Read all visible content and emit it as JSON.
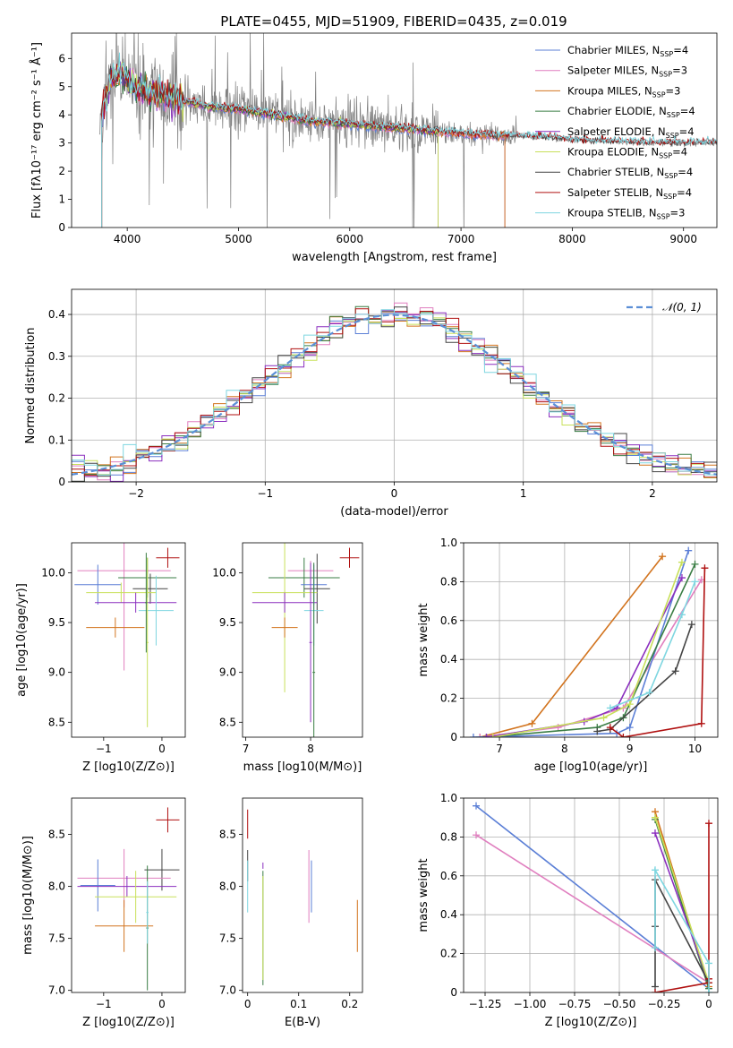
{
  "figure_title": "PLATE=0455, MJD=51909, FIBERID=0435, z=0.019",
  "colors": {
    "Chabrier MILES": "#5b7fd6",
    "Salpeter MILES": "#e07fbf",
    "Kroupa MILES": "#d2741f",
    "Chabrier ELODIE": "#3a7d44",
    "Salpeter ELODIE": "#8b2fbf",
    "Kroupa ELODIE": "#c8e05a",
    "Chabrier STELIB": "#444444",
    "Salpeter STELIB": "#b01010",
    "Kroupa STELIB": "#7ed6e0",
    "data": "#808080",
    "normal": "#5b8fd6"
  },
  "chart_data": [
    {
      "id": "spectrum",
      "type": "line",
      "title": "PLATE=0455, MJD=51909, FIBERID=0435, z=0.019",
      "xlabel": "wavelength [Angstrom, rest frame]",
      "ylabel": "Flux [fλ10⁻¹⁷ erg cm⁻² s⁻¹ Å⁻¹]",
      "xlim": [
        3500,
        9300
      ],
      "ylim": [
        0,
        6.9
      ],
      "xticks": [
        4000,
        5000,
        6000,
        7000,
        8000,
        9000
      ],
      "yticks": [
        0,
        1,
        2,
        3,
        4,
        5,
        6
      ],
      "legend_position": "top-right",
      "legend": [
        "Chabrier MILES, N_SSP=4",
        "Salpeter MILES, N_SSP=3",
        "Kroupa MILES, N_SSP=3",
        "Chabrier ELODIE, N_SSP=4",
        "Salpeter ELODIE, N_SSP=4",
        "Kroupa ELODIE, N_SSP=4",
        "Chabrier STELIB, N_SSP=4",
        "Salpeter STELIB, N_SSP=4",
        "Kroupa STELIB, N_SSP=3"
      ],
      "continuum": {
        "wavelength": [
          3750,
          3850,
          3950,
          4100,
          4300,
          4500,
          4700,
          5000,
          5300,
          5600,
          5900,
          6200,
          6500,
          6800,
          7100,
          7400,
          7700,
          8000,
          8300,
          8600,
          9000,
          9300
        ],
        "flux": [
          3.6,
          5.2,
          5.5,
          4.9,
          4.7,
          4.5,
          4.3,
          4.2,
          4.0,
          3.8,
          3.7,
          3.6,
          3.5,
          3.4,
          3.3,
          3.25,
          3.2,
          3.1,
          3.05,
          3.0,
          3.0,
          3.0
        ]
      },
      "model_cutoffs": {
        "Kroupa MILES": 7400,
        "Salpeter MILES": 7400,
        "Chabrier MILES": 7400,
        "Kroupa ELODIE": 6800,
        "Chabrier ELODIE": 6800,
        "Salpeter ELODIE": 6800,
        "Kroupa STELIB": 9300,
        "Chabrier STELIB": 9300,
        "Salpeter STELIB": 9300
      }
    },
    {
      "id": "residuals",
      "type": "step",
      "xlabel": "(data-model)/error",
      "ylabel": "Normed distribution",
      "xlim": [
        -2.5,
        2.5
      ],
      "ylim": [
        0,
        0.46
      ],
      "xticks": [
        -2,
        -1,
        0,
        1,
        2
      ],
      "yticks": [
        0.0,
        0.1,
        0.2,
        0.3,
        0.4
      ],
      "grid": true,
      "legend": [
        "𝒩(0, 1)"
      ],
      "legend_position": "top-right",
      "bin_width": 0.1
    },
    {
      "id": "age_vs_Z",
      "type": "errorbar",
      "xlabel": "Z [log10(Z/Z⊙)]",
      "ylabel": "age [log10(age/yr)]",
      "xlim": [
        -1.55,
        0.4
      ],
      "ylim": [
        8.35,
        10.3
      ],
      "xticks": [
        -1,
        0
      ],
      "yticks": [
        8.5,
        9.0,
        9.5,
        10.0
      ],
      "points": [
        {
          "model": "Salpeter STELIB",
          "x": 0.1,
          "y": 10.15,
          "xerr": 0.2,
          "yerr": 0.1
        },
        {
          "model": "Salpeter MILES",
          "x": -0.65,
          "y": 10.02,
          "xerr": 0.8,
          "yerr": 1.0
        },
        {
          "model": "Chabrier ELODIE",
          "x": -0.25,
          "y": 9.95,
          "xerr": 0.5,
          "yerr": 0.2
        },
        {
          "model": "Chabrier MILES",
          "x": -1.1,
          "y": 9.88,
          "xerr": 0.4,
          "yerr": 0.2
        },
        {
          "model": "Chabrier STELIB",
          "x": -0.2,
          "y": 9.84,
          "xerr": 0.3,
          "yerr": 0.15
        },
        {
          "model": "Kroupa ELODIE",
          "x": -0.7,
          "y": 9.8,
          "xerr": 0.6,
          "yerr": 0.1
        },
        {
          "model": "Salpeter ELODIE",
          "x": -0.45,
          "y": 9.7,
          "xerr": 0.7,
          "yerr": 0.1
        },
        {
          "model": "Kroupa STELIB",
          "x": -0.1,
          "y": 9.62,
          "xerr": 0.3,
          "yerr": 0.35
        },
        {
          "model": "Kroupa MILES",
          "x": -0.8,
          "y": 9.45,
          "xerr": 0.5,
          "yerr": 0.1
        },
        {
          "model": "Kroupa ELODIE",
          "x": -0.25,
          "y": 9.3,
          "xerr": 0.02,
          "yerr": 0.85
        },
        {
          "model": "Chabrier ELODIE",
          "x": -0.27,
          "y": 9.7,
          "xerr": 0.02,
          "yerr": 0.5
        }
      ]
    },
    {
      "id": "age_vs_mass",
      "type": "errorbar",
      "xlabel": "mass [log10(M/M⊙)]",
      "ylabel": "",
      "xlim": [
        6.95,
        8.8
      ],
      "ylim": [
        8.35,
        10.3
      ],
      "xticks": [
        7,
        8
      ],
      "yticks": [
        8.5,
        9.0,
        9.5,
        10.0
      ],
      "points": [
        {
          "model": "Salpeter STELIB",
          "x": 8.6,
          "y": 10.15,
          "xerr": 0.15,
          "yerr": 0.1
        },
        {
          "model": "Salpeter MILES",
          "x": 8.0,
          "y": 10.02,
          "xerr": 0.35,
          "yerr": 0.1
        },
        {
          "model": "Chabrier ELODIE",
          "x": 7.9,
          "y": 9.95,
          "xerr": 0.55,
          "yerr": 0.2
        },
        {
          "model": "Chabrier MILES",
          "x": 8.05,
          "y": 9.88,
          "xerr": 0.2,
          "yerr": 0.2
        },
        {
          "model": "Chabrier STELIB",
          "x": 8.1,
          "y": 9.84,
          "xerr": 0.2,
          "yerr": 0.35
        },
        {
          "model": "Kroupa ELODIE",
          "x": 7.6,
          "y": 9.8,
          "xerr": 0.5,
          "yerr": 1.0
        },
        {
          "model": "Salpeter ELODIE",
          "x": 7.6,
          "y": 9.7,
          "xerr": 0.5,
          "yerr": 0.1
        },
        {
          "model": "Kroupa STELIB",
          "x": 8.05,
          "y": 9.62,
          "xerr": 0.15,
          "yerr": 0.35
        },
        {
          "model": "Kroupa MILES",
          "x": 7.6,
          "y": 9.45,
          "xerr": 0.2,
          "yerr": 0.1
        },
        {
          "model": "Chabrier ELODIE",
          "x": 8.05,
          "y": 9.0,
          "xerr": 0.02,
          "yerr": 1.1
        },
        {
          "model": "Salpeter ELODIE",
          "x": 8.0,
          "y": 9.3,
          "xerr": 0.02,
          "yerr": 0.8
        }
      ]
    },
    {
      "id": "massweight_vs_age",
      "type": "line",
      "xlabel": "age [log10(age/yr)]",
      "ylabel": "mass weight",
      "xlim": [
        6.45,
        10.35
      ],
      "ylim": [
        0,
        1.0
      ],
      "xticks": [
        7,
        8,
        9,
        10
      ],
      "yticks": [
        0.0,
        0.2,
        0.4,
        0.6,
        0.8,
        1.0
      ],
      "grid": true,
      "series": [
        {
          "model": "Kroupa MILES",
          "x": [
            6.7,
            7.5,
            9.5
          ],
          "y": [
            0.0,
            0.07,
            0.93
          ]
        },
        {
          "model": "Salpeter MILES",
          "x": [
            6.7,
            7.9,
            8.9,
            10.1
          ],
          "y": [
            0.0,
            0.05,
            0.15,
            0.81
          ]
        },
        {
          "model": "Chabrier MILES",
          "x": [
            6.6,
            8.8,
            9.0,
            9.9
          ],
          "y": [
            0.0,
            0.02,
            0.05,
            0.96
          ]
        },
        {
          "model": "Chabrier ELODIE",
          "x": [
            6.8,
            8.5,
            8.9,
            10.0
          ],
          "y": [
            0.0,
            0.05,
            0.1,
            0.89
          ]
        },
        {
          "model": "Salpeter ELODIE",
          "x": [
            6.8,
            8.3,
            8.8,
            9.8
          ],
          "y": [
            0.0,
            0.08,
            0.15,
            0.82
          ]
        },
        {
          "model": "Kroupa ELODIE",
          "x": [
            6.9,
            8.6,
            9.0,
            9.8
          ],
          "y": [
            0.0,
            0.1,
            0.17,
            0.9
          ]
        },
        {
          "model": "Chabrier STELIB",
          "x": [
            8.5,
            8.7,
            9.7,
            9.95
          ],
          "y": [
            0.03,
            0.04,
            0.34,
            0.58
          ]
        },
        {
          "model": "Salpeter STELIB",
          "x": [
            8.7,
            8.9,
            10.1,
            10.15
          ],
          "y": [
            0.05,
            0.0,
            0.07,
            0.87
          ]
        },
        {
          "model": "Kroupa STELIB",
          "x": [
            8.7,
            9.3,
            9.8,
            10.0
          ],
          "y": [
            0.15,
            0.23,
            0.63,
            0.8
          ]
        }
      ]
    },
    {
      "id": "mass_vs_Z",
      "type": "errorbar",
      "xlabel": "Z [log10(Z/Z⊙)]",
      "ylabel": "mass [log10(M/M⊙)]",
      "xlim": [
        -1.55,
        0.4
      ],
      "ylim": [
        6.98,
        8.85
      ],
      "xticks": [
        -1,
        0
      ],
      "yticks": [
        7.0,
        7.5,
        8.0,
        8.5
      ],
      "points": [
        {
          "model": "Salpeter STELIB",
          "x": 0.1,
          "y": 8.64,
          "xerr": 0.2,
          "yerr": 0.12
        },
        {
          "model": "Chabrier STELIB",
          "x": -0.0,
          "y": 8.16,
          "xerr": 0.3,
          "yerr": 0.2
        },
        {
          "model": "Salpeter MILES",
          "x": -0.65,
          "y": 8.08,
          "xerr": 0.8,
          "yerr": 0.28
        },
        {
          "model": "Chabrier MILES",
          "x": -1.1,
          "y": 8.01,
          "xerr": 0.3,
          "yerr": 0.25
        },
        {
          "model": "Salpeter ELODIE",
          "x": -0.6,
          "y": 8.0,
          "xerr": 0.85,
          "yerr": 0.1
        },
        {
          "model": "Kroupa ELODIE",
          "x": -0.45,
          "y": 7.9,
          "xerr": 0.7,
          "yerr": 0.25
        },
        {
          "model": "Kroupa MILES",
          "x": -0.65,
          "y": 7.62,
          "xerr": 0.5,
          "yerr": 0.25
        },
        {
          "model": "Chabrier ELODIE",
          "x": -0.25,
          "y": 7.6,
          "xerr": 0.02,
          "yerr": 0.6
        },
        {
          "model": "Kroupa STELIB",
          "x": -0.25,
          "y": 7.75,
          "xerr": 0.02,
          "yerr": 0.3
        }
      ]
    },
    {
      "id": "mass_vs_ebv",
      "type": "errorbar",
      "xlabel": "E(B-V)",
      "ylabel": "",
      "xlim": [
        -0.01,
        0.225
      ],
      "ylim": [
        6.98,
        8.85
      ],
      "xticks": [
        0.0,
        0.1,
        0.2
      ],
      "yticks": [
        7.0,
        7.5,
        8.0,
        8.5
      ],
      "points": [
        {
          "model": "Salpeter STELIB",
          "x": 0.0,
          "y": 8.6,
          "xerr": 0,
          "yerr": 0.14
        },
        {
          "model": "Chabrier STELIB",
          "x": 0.0,
          "y": 8.2,
          "xerr": 0,
          "yerr": 0.15
        },
        {
          "model": "Kroupa STELIB",
          "x": 0.0,
          "y": 8.0,
          "xerr": 0,
          "yerr": 0.25
        },
        {
          "model": "Salpeter ELODIE",
          "x": 0.03,
          "y": 8.2,
          "xerr": 0,
          "yerr": 0.03
        },
        {
          "model": "Chabrier ELODIE",
          "x": 0.03,
          "y": 7.6,
          "xerr": 0,
          "yerr": 0.55
        },
        {
          "model": "Kroupa ELODIE",
          "x": 0.03,
          "y": 7.6,
          "xerr": 0,
          "yerr": 0.5
        },
        {
          "model": "Salpeter MILES",
          "x": 0.12,
          "y": 8.0,
          "xerr": 0,
          "yerr": 0.35
        },
        {
          "model": "Chabrier MILES",
          "x": 0.125,
          "y": 8.0,
          "xerr": 0,
          "yerr": 0.25
        },
        {
          "model": "Kroupa MILES",
          "x": 0.215,
          "y": 7.62,
          "xerr": 0,
          "yerr": 0.25
        }
      ]
    },
    {
      "id": "massweight_vs_Z",
      "type": "line",
      "xlabel": "Z [log10(Z/Z⊙)]",
      "ylabel": "mass weight",
      "xlim": [
        -1.37,
        0.05
      ],
      "ylim": [
        0,
        1.0
      ],
      "xticks": [
        -1.25,
        -1.0,
        -0.75,
        -0.5,
        -0.25,
        0.0
      ],
      "yticks": [
        0.0,
        0.2,
        0.4,
        0.6,
        0.8,
        1.0
      ],
      "grid": true,
      "series": [
        {
          "model": "Chabrier MILES",
          "x": [
            -1.3,
            0.0
          ],
          "y": [
            0.96,
            0.02
          ]
        },
        {
          "model": "Salpeter MILES",
          "x": [
            -1.3,
            0.0
          ],
          "y": [
            0.81,
            0.05
          ]
        },
        {
          "model": "Kroupa MILES",
          "x": [
            -0.3,
            0.0
          ],
          "y": [
            0.93,
            0.03
          ]
        },
        {
          "model": "Chabrier ELODIE",
          "x": [
            -0.3,
            0.0
          ],
          "y": [
            0.89,
            0.02
          ]
        },
        {
          "model": "Salpeter ELODIE",
          "x": [
            -0.3,
            0.0
          ],
          "y": [
            0.82,
            0.05
          ]
        },
        {
          "model": "Kroupa ELODIE",
          "x": [
            -0.3,
            0.0
          ],
          "y": [
            0.9,
            0.05
          ]
        },
        {
          "model": "Chabrier STELIB",
          "x": [
            -0.3,
            -0.3,
            -0.3,
            0.0
          ],
          "y": [
            0.03,
            0.34,
            0.58,
            0.05
          ]
        },
        {
          "model": "Salpeter STELIB",
          "x": [
            -0.3,
            0.0,
            0.0,
            0.0
          ],
          "y": [
            0.0,
            0.05,
            0.07,
            0.87
          ]
        },
        {
          "model": "Kroupa STELIB",
          "x": [
            -0.3,
            -0.3,
            0.0,
            0.0
          ],
          "y": [
            0.23,
            0.63,
            0.15,
            0.0
          ]
        }
      ]
    }
  ]
}
